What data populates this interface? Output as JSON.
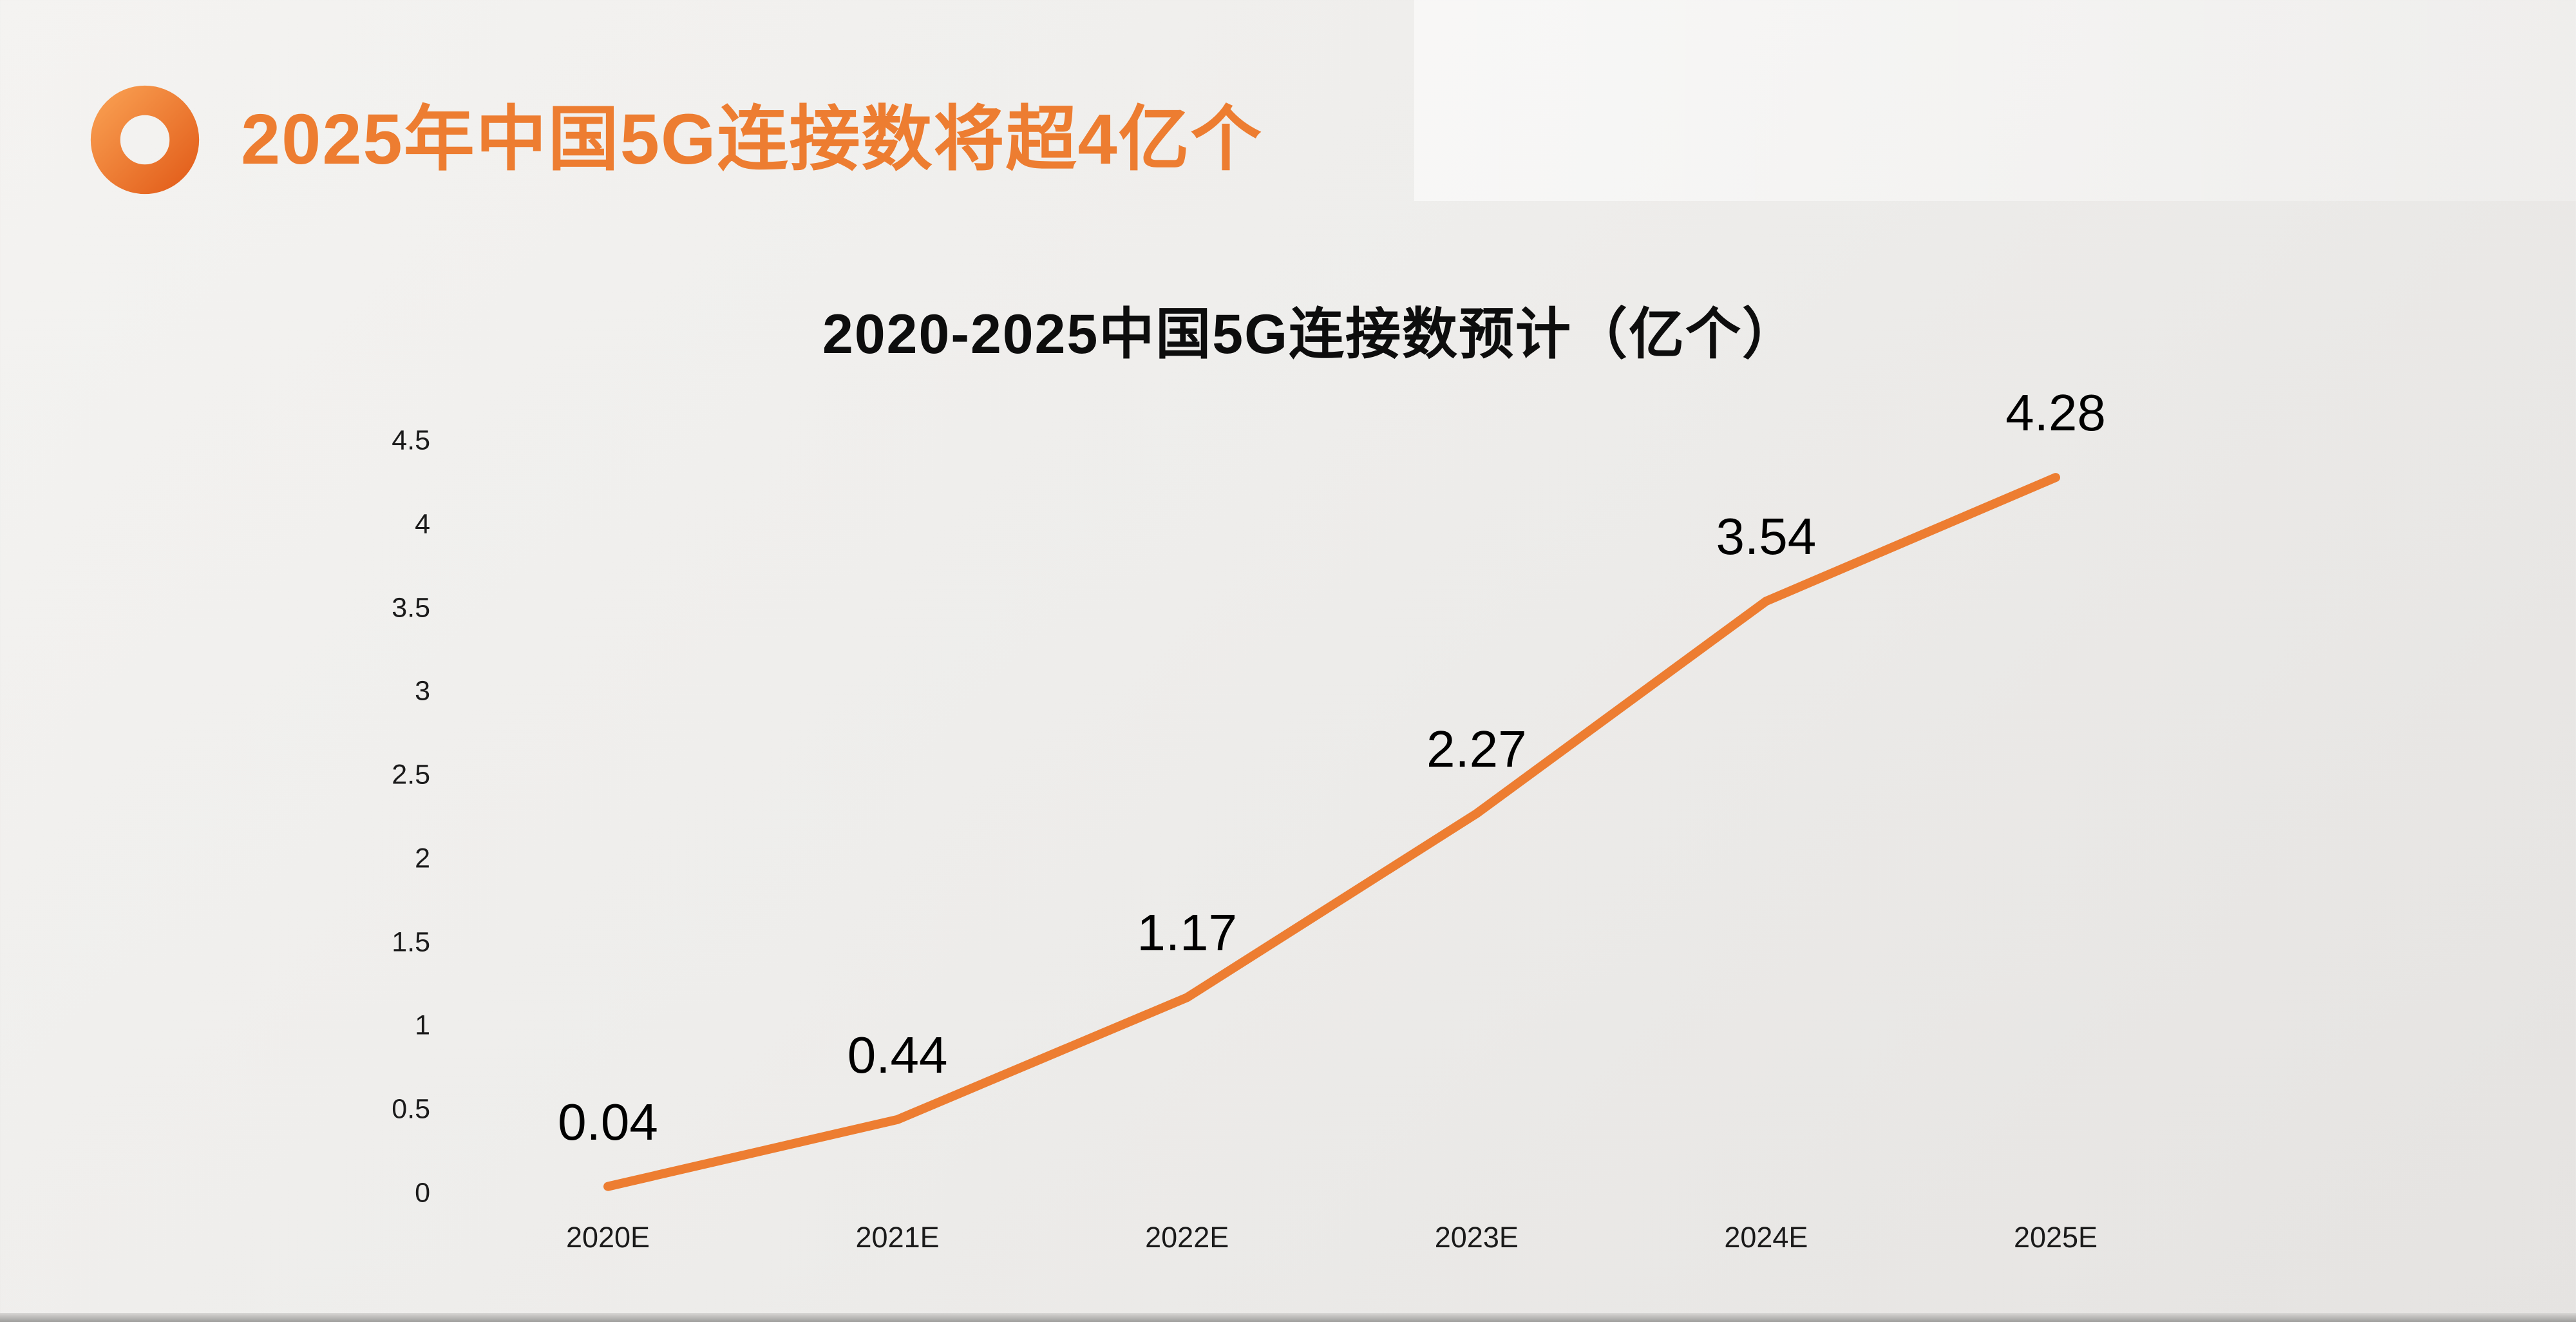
{
  "header": {
    "title": "2025年中国5G连接数将超4亿个",
    "accent_color": "#ED7D31"
  },
  "chart_data": {
    "type": "line",
    "title": "2020-2025中国5G连接数预计（亿个）",
    "categories": [
      "2020E",
      "2021E",
      "2022E",
      "2023E",
      "2024E",
      "2025E"
    ],
    "values": [
      0.04,
      0.44,
      1.17,
      2.27,
      3.54,
      4.28
    ],
    "data_labels": [
      "0.04",
      "0.44",
      "1.17",
      "2.27",
      "3.54",
      "4.28"
    ],
    "ylim": [
      0,
      4.5
    ],
    "yticks": [
      "4.5",
      "4",
      "3.5",
      "3",
      "2.5",
      "2",
      "1.5",
      "1",
      "0.5",
      "0"
    ],
    "xlabel": "",
    "ylabel": "",
    "grid": false,
    "legend": "none",
    "line_color": "#ED7D31"
  }
}
